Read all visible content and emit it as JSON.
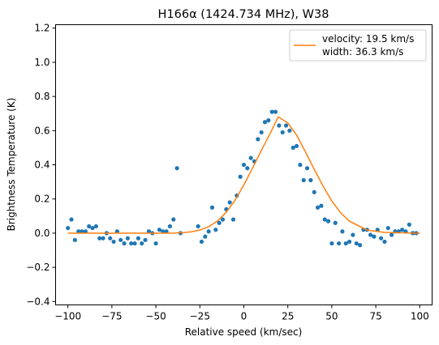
{
  "chart_data": {
    "type": "scatter",
    "title": "H166α (1424.734 MHz), W38",
    "xlabel": "Relative speed (km/sec)",
    "ylabel": "Brightness Temperature (K)",
    "xlim": [
      -107,
      107
    ],
    "ylim": [
      -0.42,
      1.22
    ],
    "xticks": [
      -100,
      -75,
      -50,
      -25,
      0,
      25,
      50,
      75,
      100
    ],
    "xtick_labels": [
      "−100",
      "−75",
      "−50",
      "−25",
      "0",
      "25",
      "50",
      "75",
      "100"
    ],
    "yticks": [
      -0.4,
      -0.2,
      0.0,
      0.2,
      0.4,
      0.6,
      0.8,
      1.0,
      1.2
    ],
    "ytick_labels": [
      "−0.4",
      "−0.2",
      "0.0",
      "0.2",
      "0.4",
      "0.6",
      "0.8",
      "1.0",
      "1.2"
    ],
    "grid": false,
    "legend_position": "top-right",
    "series": [
      {
        "kind": "scatter",
        "color": "#1f77b4",
        "x": [
          -100,
          -98,
          -96,
          -94,
          -92,
          -90,
          -88,
          -86,
          -84,
          -82,
          -80,
          -78,
          -76,
          -74,
          -72,
          -70,
          -68,
          -66,
          -64,
          -62,
          -60,
          -58,
          -56,
          -54,
          -52,
          -50,
          -48,
          -46,
          -44,
          -42,
          -40,
          -38,
          -36,
          -26,
          -24,
          -22,
          -20,
          -18,
          -16,
          -14,
          -12,
          -10,
          -8,
          -6,
          -4,
          -2,
          0,
          2,
          4,
          6,
          8,
          10,
          12,
          14,
          16,
          18,
          20,
          22,
          24,
          26,
          28,
          30,
          32,
          34,
          36,
          38,
          40,
          42,
          44,
          46,
          48,
          50,
          52,
          54,
          56,
          58,
          60,
          62,
          64,
          66,
          68,
          70,
          72,
          74,
          76,
          78,
          80,
          82,
          84,
          86,
          88,
          90,
          92,
          94,
          96,
          98
        ],
        "y": [
          0.03,
          0.08,
          -0.04,
          0.01,
          0.01,
          0.01,
          0.04,
          0.03,
          0.04,
          -0.03,
          -0.03,
          0.0,
          -0.03,
          -0.05,
          0.01,
          -0.04,
          -0.06,
          -0.03,
          -0.06,
          -0.06,
          -0.03,
          -0.06,
          -0.04,
          0.01,
          0.0,
          -0.06,
          0.02,
          0.01,
          0.01,
          0.04,
          0.08,
          0.38,
          0.0,
          0.04,
          -0.05,
          -0.02,
          0.01,
          0.15,
          0.02,
          0.06,
          0.08,
          0.14,
          0.18,
          0.08,
          0.22,
          0.33,
          0.4,
          0.38,
          0.44,
          0.42,
          0.55,
          0.59,
          0.65,
          0.66,
          0.71,
          0.71,
          0.63,
          0.59,
          0.63,
          0.6,
          0.5,
          0.51,
          0.4,
          0.31,
          0.38,
          0.31,
          0.24,
          0.15,
          0.16,
          0.08,
          0.07,
          -0.06,
          0.06,
          -0.06,
          0.01,
          -0.06,
          -0.05,
          -0.01,
          -0.06,
          -0.07,
          0.02,
          0.02,
          -0.01,
          -0.02,
          0.02,
          -0.03,
          -0.05,
          0.03,
          -0.01,
          0.01,
          0.01,
          0.02,
          0.01,
          0.05,
          0.0,
          0.0
        ]
      },
      {
        "kind": "line",
        "name": "velocity: 19.5 km/s\nwidth: 36.3 km/s",
        "legend_lines": [
          "velocity: 19.5 km/s",
          "width: 36.3 km/s"
        ],
        "color": "#ff7f0e",
        "x": [
          -100,
          -80,
          -60,
          -50,
          -40,
          -35,
          -30,
          -25,
          -20,
          -15,
          -10,
          -5,
          0,
          5,
          10,
          15,
          19.5,
          25,
          30,
          35,
          40,
          45,
          50,
          55,
          60,
          70,
          80,
          100
        ],
        "y": [
          0.0,
          0.0,
          0.0,
          0.0,
          0.0,
          0.003,
          0.008,
          0.018,
          0.038,
          0.071,
          0.122,
          0.193,
          0.282,
          0.382,
          0.486,
          0.584,
          0.68,
          0.645,
          0.574,
          0.476,
          0.374,
          0.276,
          0.188,
          0.119,
          0.07,
          0.018,
          0.004,
          0.0
        ]
      }
    ]
  }
}
